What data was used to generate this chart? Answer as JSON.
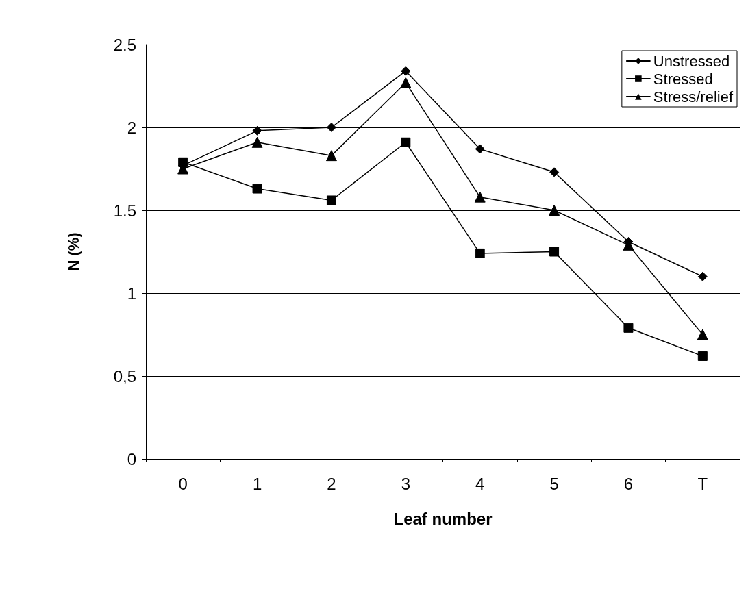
{
  "chart_data": {
    "type": "line",
    "xlabel": "Leaf number",
    "ylabel": "N (%)",
    "categories": [
      "0",
      "1",
      "2",
      "3",
      "4",
      "5",
      "6",
      "T"
    ],
    "series": [
      {
        "name": "Unstressed",
        "color": "#000000",
        "marker": "diamond",
        "values": [
          1.77,
          1.98,
          2.0,
          2.34,
          1.87,
          1.73,
          1.31,
          1.1
        ]
      },
      {
        "name": "Stressed",
        "color": "#000000",
        "marker": "square",
        "values": [
          1.79,
          1.63,
          1.56,
          1.91,
          1.24,
          1.25,
          0.79,
          0.62
        ]
      },
      {
        "name": "Stress/relief",
        "color": "#000000",
        "marker": "triangle",
        "values": [
          1.75,
          1.91,
          1.83,
          2.27,
          1.58,
          1.5,
          1.29,
          0.75
        ]
      }
    ],
    "ylim": [
      0,
      2.5
    ],
    "yticks": [
      0,
      {
        "value": 0.5,
        "label": "0,5"
      },
      1,
      1.5,
      2,
      2.5
    ],
    "grid": "y",
    "legend": "top right",
    "line_style": "solid"
  }
}
